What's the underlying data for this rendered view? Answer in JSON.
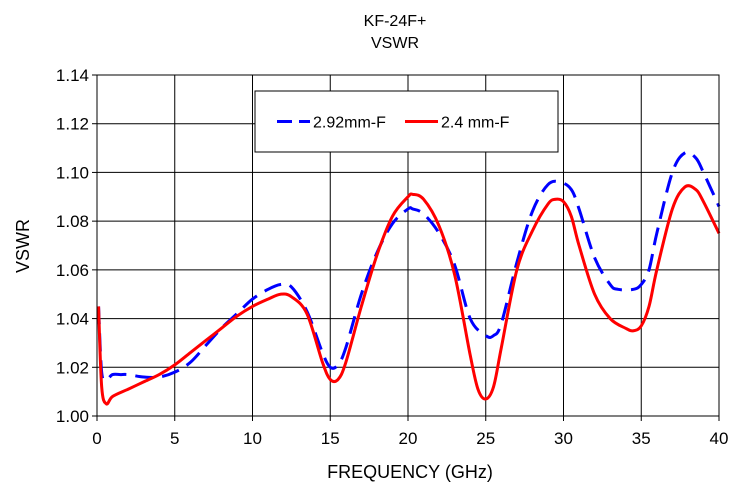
{
  "chart_data": {
    "type": "line",
    "title": "KF-24F+",
    "subtitle": "VSWR",
    "xlabel": "FREQUENCY (GHz)",
    "ylabel": "VSWR",
    "xlim": [
      0,
      40
    ],
    "ylim": [
      1.0,
      1.14
    ],
    "x_ticks": [
      "0",
      "5",
      "10",
      "15",
      "20",
      "25",
      "30",
      "35",
      "40"
    ],
    "y_ticks": [
      "1.00",
      "1.02",
      "1.04",
      "1.06",
      "1.08",
      "1.10",
      "1.12",
      "1.14"
    ],
    "grid": true,
    "legend_position": "top-center",
    "series": [
      {
        "name": "2.92mm-F",
        "color": "#0000ff",
        "style": "dashed",
        "x": [
          0.1,
          0.3,
          0.6,
          1,
          1.5,
          2,
          3,
          4,
          5,
          6,
          7,
          8,
          9,
          10,
          11,
          11.8,
          12.5,
          13.5,
          14.5,
          15,
          15.5,
          16,
          17,
          18,
          19,
          20,
          20.3,
          21,
          22,
          23,
          24,
          25,
          25.5,
          26,
          27,
          28,
          29,
          29.8,
          30.5,
          31,
          32,
          33,
          33.5,
          34.5,
          35,
          35.5,
          36,
          37,
          37.8,
          38.5,
          39,
          40
        ],
        "y": [
          1.045,
          1.018,
          1.015,
          1.017,
          1.017,
          1.017,
          1.016,
          1.016,
          1.018,
          1.022,
          1.029,
          1.036,
          1.042,
          1.048,
          1.052,
          1.054,
          1.053,
          1.043,
          1.026,
          1.02,
          1.021,
          1.028,
          1.05,
          1.067,
          1.079,
          1.085,
          1.085,
          1.083,
          1.075,
          1.062,
          1.04,
          1.033,
          1.033,
          1.038,
          1.063,
          1.084,
          1.095,
          1.096,
          1.093,
          1.085,
          1.065,
          1.054,
          1.052,
          1.052,
          1.054,
          1.06,
          1.075,
          1.1,
          1.108,
          1.106,
          1.1,
          1.086
        ]
      },
      {
        "name": "2.4 mm-F",
        "color": "#ff0000",
        "style": "solid",
        "x": [
          0.1,
          0.3,
          0.6,
          1,
          2,
          3,
          4,
          5,
          6,
          7,
          8,
          9,
          10,
          11,
          11.8,
          12.5,
          13.5,
          14.5,
          15,
          15.5,
          16,
          17,
          18,
          19,
          20,
          20.3,
          21,
          22,
          23,
          24,
          24.5,
          25,
          25.5,
          26,
          27,
          28,
          29,
          29.5,
          30,
          30.5,
          31,
          32,
          33,
          34,
          34.5,
          35,
          35.5,
          36,
          37,
          37.8,
          38.5,
          39,
          40
        ],
        "y": [
          1.045,
          1.012,
          1.005,
          1.008,
          1.011,
          1.014,
          1.017,
          1.021,
          1.026,
          1.031,
          1.036,
          1.041,
          1.045,
          1.048,
          1.05,
          1.049,
          1.042,
          1.022,
          1.015,
          1.015,
          1.022,
          1.045,
          1.066,
          1.082,
          1.09,
          1.091,
          1.089,
          1.078,
          1.058,
          1.025,
          1.011,
          1.007,
          1.012,
          1.028,
          1.06,
          1.076,
          1.087,
          1.089,
          1.088,
          1.082,
          1.07,
          1.05,
          1.04,
          1.036,
          1.035,
          1.037,
          1.045,
          1.06,
          1.085,
          1.094,
          1.093,
          1.088,
          1.075
        ]
      }
    ]
  }
}
